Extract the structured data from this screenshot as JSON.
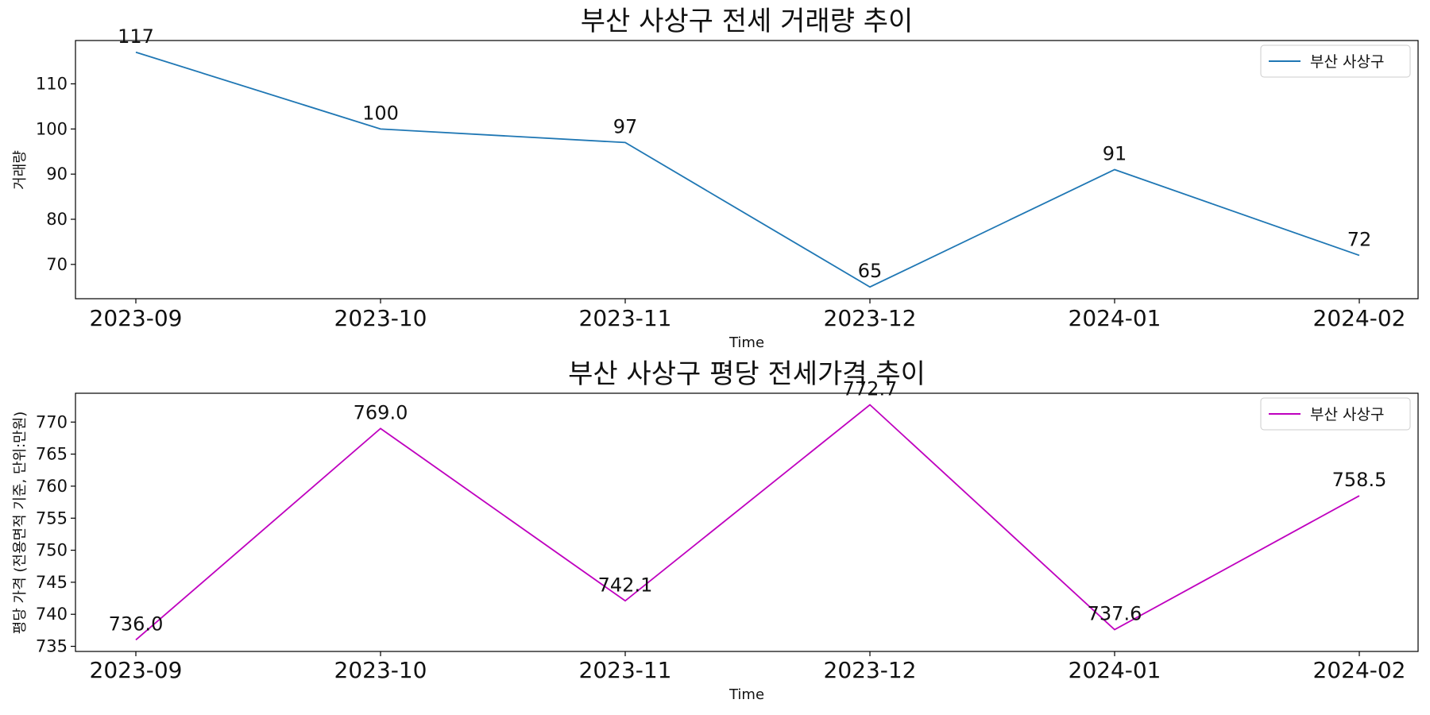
{
  "chart_data": [
    {
      "type": "line",
      "title": "부산 사상구 전세 거래량 추이",
      "xlabel": "Time",
      "ylabel": "거래량",
      "categories": [
        "2023-09",
        "2023-10",
        "2023-11",
        "2023-12",
        "2024-01",
        "2024-02"
      ],
      "series": [
        {
          "name": "부산 사상구",
          "values": [
            117,
            100,
            97,
            65,
            91,
            72
          ],
          "color": "#1f77b4",
          "labels": [
            "117",
            "100",
            "97",
            "65",
            "91",
            "72"
          ]
        }
      ],
      "ylim": [
        62.4,
        119.6
      ],
      "yticks": [
        70,
        80,
        90,
        100,
        110
      ],
      "grid": false,
      "legend": "top-right"
    },
    {
      "type": "line",
      "title": "부산 사상구 평당 전세가격 추이",
      "xlabel": "Time",
      "ylabel": "평당 가격 (전용면적 기준, 단위:만원)",
      "categories": [
        "2023-09",
        "2023-10",
        "2023-11",
        "2023-12",
        "2024-01",
        "2024-02"
      ],
      "series": [
        {
          "name": "부산 사상구",
          "values": [
            736.0,
            769.0,
            742.1,
            772.7,
            737.6,
            758.5
          ],
          "color": "#bf00bf",
          "labels": [
            "736.0",
            "769.0",
            "742.1",
            "772.7",
            "737.6",
            "758.5"
          ]
        }
      ],
      "ylim": [
        734.2,
        774.5
      ],
      "yticks": [
        735,
        740,
        745,
        750,
        755,
        760,
        765,
        770
      ],
      "grid": false,
      "legend": "top-right"
    }
  ]
}
